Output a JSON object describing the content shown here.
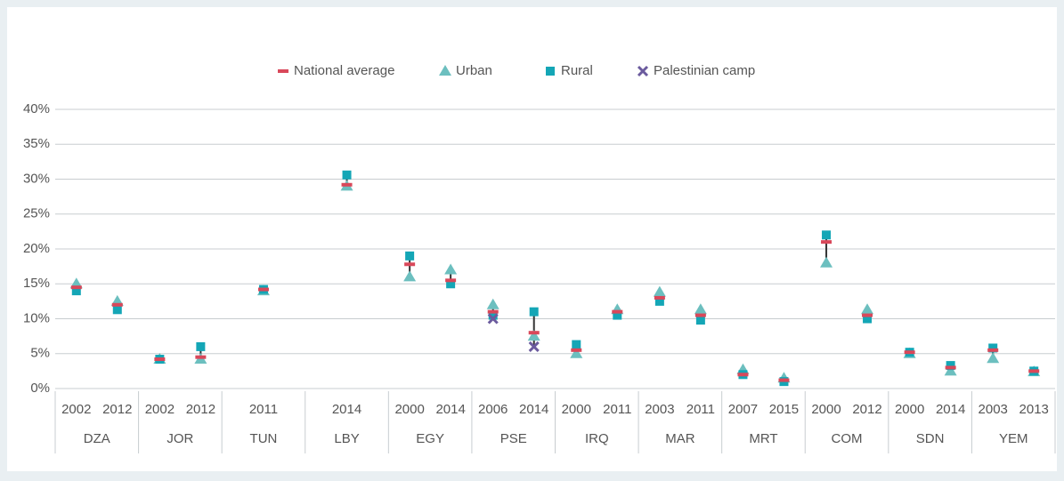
{
  "chart_data": {
    "type": "dot",
    "groups": [
      {
        "name": "DZA",
        "categories": [
          "2002",
          "2012"
        ]
      },
      {
        "name": "JOR",
        "categories": [
          "2002",
          "2012"
        ]
      },
      {
        "name": "TUN",
        "categories": [
          "2011"
        ]
      },
      {
        "name": "LBY",
        "categories": [
          "2014"
        ]
      },
      {
        "name": "EGY",
        "categories": [
          "2000",
          "2014"
        ]
      },
      {
        "name": "PSE",
        "categories": [
          "2006",
          "2014"
        ]
      },
      {
        "name": "IRQ",
        "categories": [
          "2000",
          "2011"
        ]
      },
      {
        "name": "MAR",
        "categories": [
          "2003",
          "2011"
        ]
      },
      {
        "name": "MRT",
        "categories": [
          "2007",
          "2015"
        ]
      },
      {
        "name": "COM",
        "categories": [
          "2000",
          "2012"
        ]
      },
      {
        "name": "SDN",
        "categories": [
          "2000",
          "2014"
        ]
      },
      {
        "name": "YEM",
        "categories": [
          "2003",
          "2013"
        ]
      }
    ],
    "series": [
      {
        "name": "National average",
        "color": "#d9485a",
        "marker": "dash",
        "values": [
          14.5,
          12,
          4.2,
          4.5,
          14.2,
          29.2,
          17.8,
          15.5,
          11,
          8,
          5.5,
          11,
          13,
          10.5,
          2,
          1.2,
          21,
          10.5,
          5.2,
          3,
          5.5,
          2.5
        ]
      },
      {
        "name": "Urban",
        "color": "#6cbfbf",
        "marker": "triangle",
        "values": [
          15,
          12.5,
          4.2,
          4.2,
          14,
          29,
          16,
          17,
          12,
          7.5,
          5,
          11.3,
          13.8,
          11.3,
          2.7,
          1.5,
          18,
          11.3,
          5,
          2.5,
          4.3,
          2.4
        ]
      },
      {
        "name": "Rural",
        "color": "#14a6b6",
        "marker": "square",
        "values": [
          14,
          11.3,
          4.2,
          6,
          14.2,
          30.6,
          19,
          15,
          10.5,
          11,
          6.3,
          10.5,
          12.5,
          9.8,
          2,
          1,
          22,
          10,
          5.2,
          3.3,
          5.8,
          2.5
        ]
      },
      {
        "name": "Palestinian camp",
        "color": "#6b5b9e",
        "marker": "cross",
        "values": [
          null,
          null,
          null,
          null,
          null,
          null,
          null,
          null,
          10,
          6,
          null,
          null,
          null,
          null,
          null,
          null,
          null,
          null,
          null,
          null,
          null,
          null
        ]
      }
    ],
    "ylim": [
      0,
      40
    ],
    "yticks": [
      {
        "value": 0,
        "label": "0%"
      },
      {
        "value": 5,
        "label": "5%"
      },
      {
        "value": 10,
        "label": "10%"
      },
      {
        "value": 15,
        "label": "15%"
      },
      {
        "value": 20,
        "label": "20%"
      },
      {
        "value": 25,
        "label": "25%"
      },
      {
        "value": 30,
        "label": "30%"
      },
      {
        "value": 35,
        "label": "35%"
      },
      {
        "value": 40,
        "label": "40%"
      }
    ],
    "grid": true,
    "legend": "top"
  }
}
